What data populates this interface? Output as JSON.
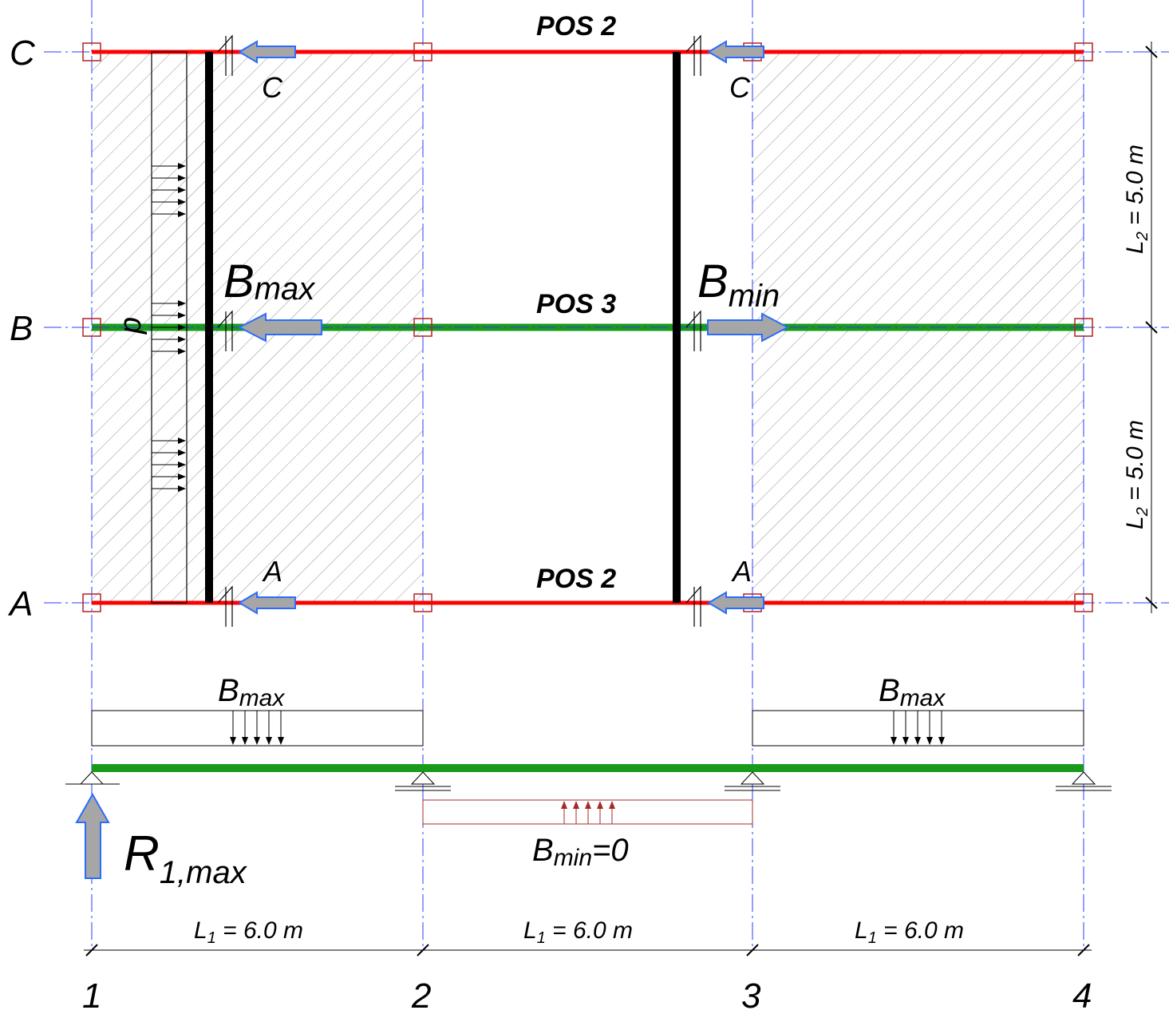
{
  "axes": {
    "rows": [
      "C",
      "B",
      "A"
    ],
    "columns": [
      "1",
      "2",
      "3",
      "4"
    ]
  },
  "labels": {
    "pos2_top": "POS 2",
    "pos3": "POS 3",
    "pos2_bottom": "POS 2",
    "c_left": "C",
    "c_right": "C",
    "a_left": "A",
    "a_right": "A",
    "bmax_B": "B",
    "bmax_sub": "max",
    "bmin_B": "B",
    "bmin_sub": "min",
    "p": "p",
    "beam_bmax_left_B": "B",
    "beam_bmax_left_sub": "max",
    "beam_bmax_right_B": "B",
    "beam_bmax_right_sub": "max",
    "bmin0_B": "B",
    "bmin0_sub": "min",
    "bmin0_val": "=0",
    "r1_R": "R",
    "r1_sub": "1,max"
  },
  "dimensions": {
    "l1": {
      "symbol": "L",
      "sub": "1",
      "value": " = 6.0 m"
    },
    "l2": {
      "symbol": "L",
      "sub": "2",
      "value": " = 5.0 m"
    }
  },
  "colors": {
    "red_beam": "#ff0000",
    "green_beam": "#1a9a1a",
    "axis_line": "#2a3cff",
    "arrow_fill": "#a6a6a6",
    "arrow_stroke": "#2a6cff",
    "support_box": "#b22222",
    "uplift_load": "#a52a2a"
  }
}
